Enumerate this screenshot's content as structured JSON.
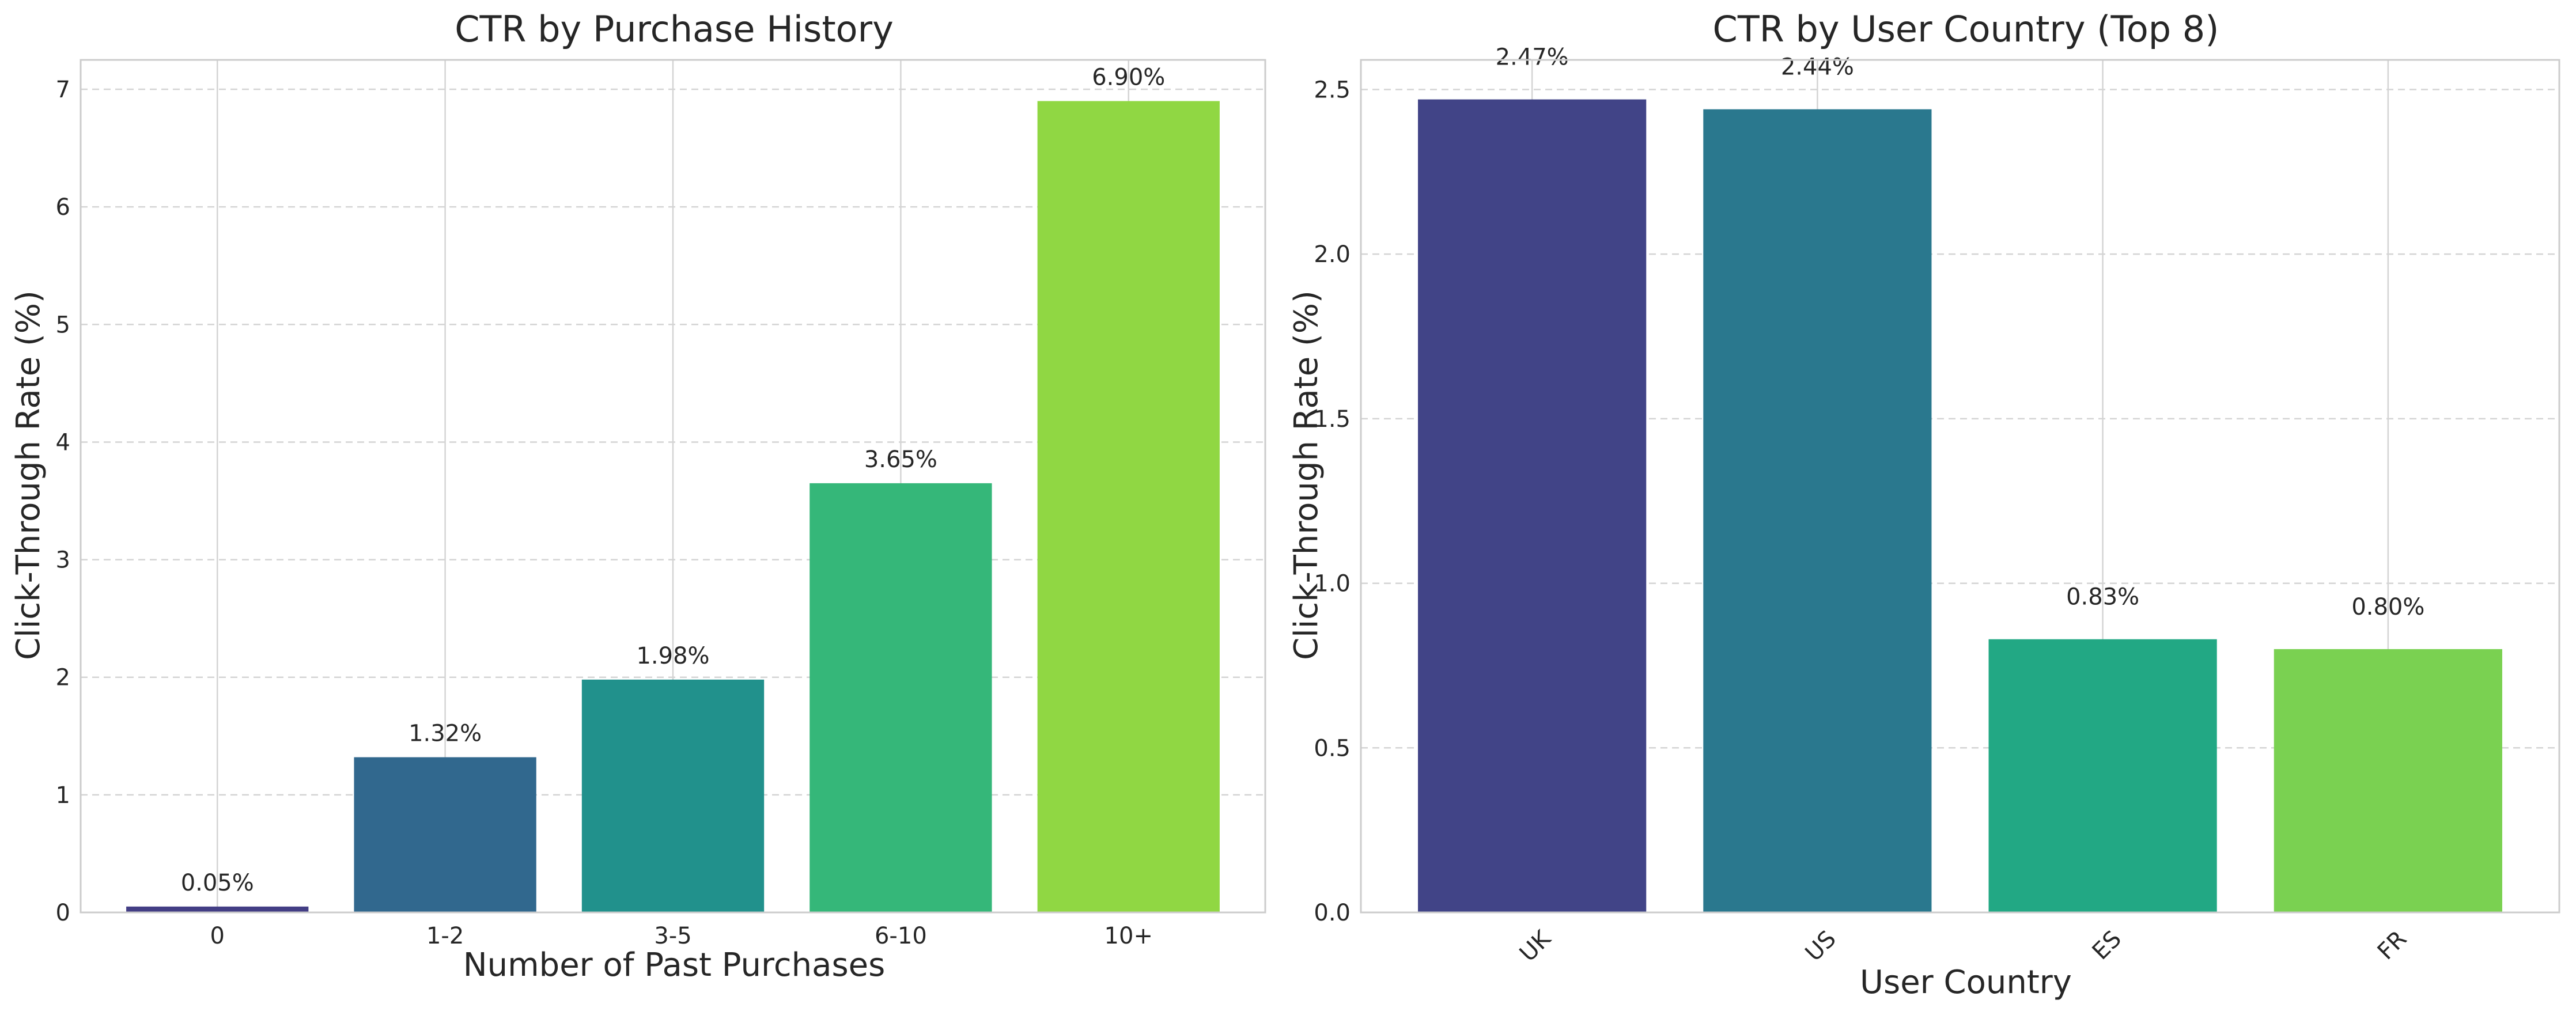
{
  "chart_data": [
    {
      "type": "bar",
      "title": "CTR by Purchase History",
      "xlabel": "Number of Past Purchases",
      "ylabel": "Click-Through Rate (%)",
      "categories": [
        "0",
        "1-2",
        "3-5",
        "6-10",
        "10+"
      ],
      "values": [
        0.05,
        1.32,
        1.98,
        3.65,
        6.9
      ],
      "value_labels": [
        "0.05%",
        "1.32%",
        "1.98%",
        "3.65%",
        "6.90%"
      ],
      "colors": [
        "#433e85",
        "#31688e",
        "#21918c",
        "#35b779",
        "#90d743"
      ],
      "ylim": [
        0,
        7.25
      ],
      "yticks": [
        0,
        1,
        2,
        3,
        4,
        5,
        6,
        7
      ],
      "ytick_labels": [
        "0",
        "1",
        "2",
        "3",
        "4",
        "5",
        "6",
        "7"
      ],
      "xtick_rotation": 0,
      "grid": true
    },
    {
      "type": "bar",
      "title": "CTR by User Country (Top 8)",
      "xlabel": "User Country",
      "ylabel": "Click-Through Rate (%)",
      "categories": [
        "UK",
        "US",
        "ES",
        "FR"
      ],
      "values": [
        2.47,
        2.44,
        0.83,
        0.8
      ],
      "value_labels": [
        "2.47%",
        "2.44%",
        "0.83%",
        "0.80%"
      ],
      "colors": [
        "#414487",
        "#2a788e",
        "#22a884",
        "#7ad151"
      ],
      "ylim": [
        0,
        2.59
      ],
      "yticks": [
        0,
        0.5,
        1.0,
        1.5,
        2.0,
        2.5
      ],
      "ytick_labels": [
        "0.0",
        "0.5",
        "1.0",
        "1.5",
        "2.0",
        "2.5"
      ],
      "xtick_rotation": -45,
      "grid": true
    }
  ]
}
